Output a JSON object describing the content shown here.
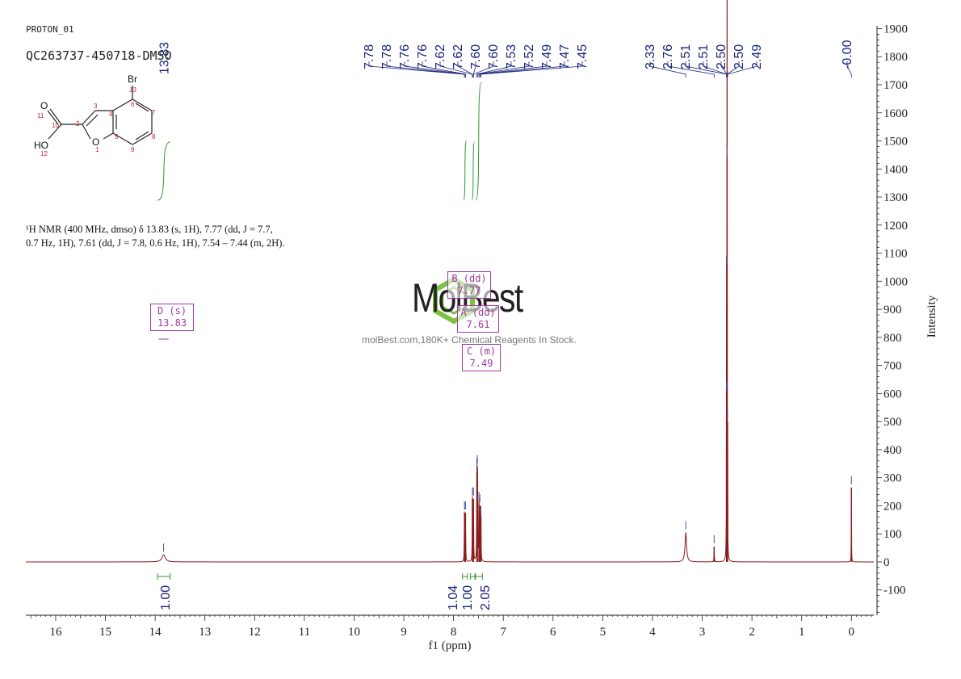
{
  "header": {
    "experiment": "PROTON_01",
    "sample": "QC263737-450718-DMSO"
  },
  "molecule": {
    "atoms": {
      "br": "Br",
      "n13": "13",
      "n3": "3",
      "n4": "4",
      "n6": "6",
      "n7": "7",
      "n8": "8",
      "n9": "9",
      "n5": "5",
      "n2": "2",
      "n1": "1",
      "o1": "O",
      "o11": "O",
      "n11": "11",
      "n10": "10",
      "ho": "HO",
      "n12": "12"
    }
  },
  "description": {
    "line1": "¹H NMR (400 MHz, dmso) δ 13.83 (s, 1H), 7.77 (dd, J = 7.7,",
    "line2": "0.7 Hz, 1H), 7.61 (dd, J = 7.8, 0.6 Hz, 1H), 7.54 – 7.44 (m, 2H)."
  },
  "multiplet_boxes": [
    {
      "label": "D (s)",
      "value": "13.83"
    },
    {
      "label": "B (dd)",
      "value": "7.77"
    },
    {
      "label": "A (dd)",
      "value": "7.61"
    },
    {
      "label": "C (m)",
      "value": "7.49"
    }
  ],
  "watermark": {
    "name": "MolBest",
    "tagline": "molBest.com,180K+ Chemical Reagents In Stock."
  },
  "colors": {
    "spectrum": "#8b1a1a",
    "peak_labels": "#1a237e",
    "integral": "#2e9a2e",
    "multiplet": "#a23aa2",
    "axis": "#222222"
  },
  "chart_data": {
    "type": "line",
    "xlabel": "f1 (ppm)",
    "ylabel": "Intensity",
    "xlim": [
      16.6,
      -0.45
    ],
    "ylim": [
      -190,
      1910
    ],
    "x_ticks": [
      16,
      15,
      14,
      13,
      12,
      11,
      10,
      9,
      8,
      7,
      6,
      5,
      4,
      3,
      2,
      1,
      0
    ],
    "y_ticks": [
      -100,
      0,
      100,
      200,
      300,
      400,
      500,
      600,
      700,
      800,
      900,
      1000,
      1100,
      1200,
      1300,
      1400,
      1500,
      1600,
      1700,
      1800,
      1900
    ],
    "peaks": [
      {
        "ppm": 13.83,
        "height": 25,
        "width": 0.04
      },
      {
        "ppm": 7.78,
        "height": 175,
        "width": 0.004
      },
      {
        "ppm": 7.76,
        "height": 175,
        "width": 0.004
      },
      {
        "ppm": 7.62,
        "height": 225,
        "width": 0.004
      },
      {
        "ppm": 7.6,
        "height": 225,
        "width": 0.004
      },
      {
        "ppm": 7.53,
        "height": 320,
        "width": 0.004
      },
      {
        "ppm": 7.52,
        "height": 340,
        "width": 0.004
      },
      {
        "ppm": 7.49,
        "height": 210,
        "width": 0.004
      },
      {
        "ppm": 7.47,
        "height": 200,
        "width": 0.004
      },
      {
        "ppm": 7.45,
        "height": 160,
        "width": 0.004
      },
      {
        "ppm": 3.33,
        "height": 105,
        "width": 0.018
      },
      {
        "ppm": 2.76,
        "height": 55,
        "width": 0.004
      },
      {
        "ppm": 2.51,
        "height": 600,
        "width": 0.0022
      },
      {
        "ppm": 2.51,
        "height": 600,
        "width": 0.0022
      },
      {
        "ppm": 2.5,
        "height": 1440,
        "width": 0.0022
      },
      {
        "ppm": 2.5,
        "height": 1050,
        "width": 0.0022
      },
      {
        "ppm": 2.49,
        "height": 500,
        "width": 0.0022
      },
      {
        "ppm": 0.0,
        "height": 265,
        "width": 0.0025
      }
    ],
    "peak_labels": [
      "7.78",
      "7.78",
      "7.76",
      "7.76",
      "7.62",
      "7.62",
      "7.60",
      "7.60",
      "7.53",
      "7.52",
      "7.49",
      "7.47",
      "7.45",
      "3.33",
      "2.76",
      "2.51",
      "2.51",
      "2.50",
      "2.50",
      "2.49",
      "-0.00"
    ],
    "isolated_label": "13.83",
    "integrals": [
      {
        "from": 13.95,
        "to": 13.7,
        "value": "1.00"
      },
      {
        "from": 7.82,
        "to": 7.72,
        "value": "1.04"
      },
      {
        "from": 7.66,
        "to": 7.57,
        "value": "1.00"
      },
      {
        "from": 7.56,
        "to": 7.42,
        "value": "2.05"
      }
    ]
  }
}
